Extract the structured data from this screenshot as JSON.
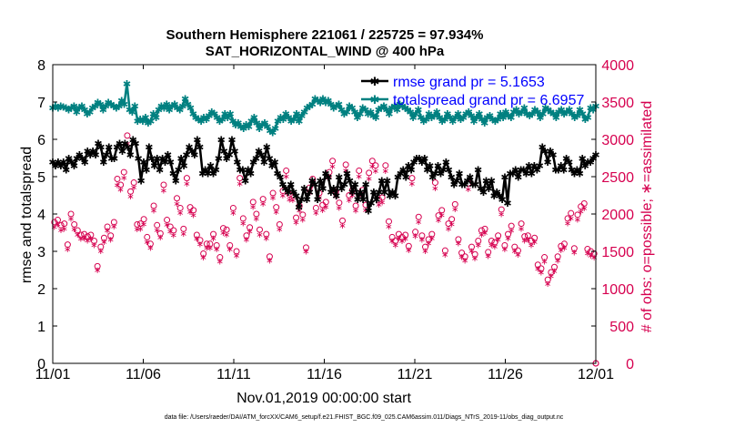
{
  "chart_data": {
    "type": "line",
    "title": [
      "Southern Hemisphere 221061 / 225725 = 97.934%",
      "SAT_HORIZONTAL_WIND @ 400 hPa"
    ],
    "xlabel": "Nov.01,2019 00:00:00 start",
    "ylabel_left": "rmse and totalspread",
    "ylabel_right": "# of obs: o=possible; ∗=assimilated",
    "x_ticks": [
      "11/01",
      "11/06",
      "11/11",
      "11/16",
      "11/21",
      "11/26",
      "12/01"
    ],
    "xlim_days": [
      0,
      30
    ],
    "ylim_left": [
      0,
      8
    ],
    "y_ticks_left": [
      "0",
      "1",
      "2",
      "3",
      "4",
      "5",
      "6",
      "7",
      "8"
    ],
    "ylim_right": [
      0,
      4000
    ],
    "y_ticks_right": [
      "0",
      "500",
      "1000",
      "1500",
      "2000",
      "2500",
      "3000",
      "3500",
      "4000"
    ],
    "legend": [
      "rmse grand pr = 5.1653",
      "totalspread grand pr = 6.6957"
    ],
    "footer": "data file: /Users/raeder/DAI/ATM_forcXX/CAM6_setup/f.e21.FHIST_BGC.f09_025.CAM6assim.011/Diags_NTrS_2019-11/obs_diag_output.nc",
    "colors": {
      "rmse": "#000000",
      "totalspread": "#008080",
      "obs": "#d6004f",
      "frame": "#000000"
    },
    "series": [
      {
        "name": "rmse",
        "values": [
          5.4,
          5.3,
          5.4,
          5.3,
          5.4,
          5.2,
          5.5,
          5.4,
          5.3,
          5.5,
          5.6,
          5.5,
          5.4,
          5.7,
          5.6,
          5.7,
          5.6,
          5.9,
          5.8,
          5.4,
          5.6,
          5.8,
          5.5,
          5.5,
          5.8,
          5.9,
          5.7,
          5.9,
          5.8,
          5.6,
          6.0,
          5.9,
          5.5,
          4.9,
          5.4,
          5.2,
          5.8,
          5.5,
          5.3,
          5.5,
          5.2,
          5.5,
          5.4,
          5.6,
          5.4,
          5.1,
          4.9,
          5.2,
          5.5,
          5.3,
          5.6,
          5.8,
          5.7,
          5.6,
          6.0,
          5.8,
          5.1,
          5.2,
          5.1,
          5.3,
          5.1,
          5.2,
          5.5,
          6.0,
          5.7,
          5.5,
          5.6,
          6.0,
          5.7,
          5.4,
          5.2,
          5.2,
          4.9,
          5.2,
          5.1,
          5.4,
          5.5,
          5.7,
          5.6,
          5.4,
          5.8,
          5.5,
          5.3,
          5.4,
          5.1,
          5.0,
          4.8,
          4.7,
          4.6,
          4.8,
          4.6,
          4.5,
          4.2,
          4.4,
          4.7,
          4.4,
          4.6,
          4.9,
          4.8,
          4.4,
          4.9,
          4.7,
          5.1,
          5.0,
          4.6,
          4.7,
          4.5,
          5.0,
          4.7,
          4.8,
          5.1,
          4.9,
          4.6,
          4.8,
          4.4,
          4.6,
          4.4,
          4.8,
          4.1,
          4.3,
          4.6,
          4.4,
          4.6,
          4.9,
          4.6,
          4.9,
          4.5,
          4.6,
          4.5,
          5.0,
          5.1,
          5.2,
          5.0,
          5.3,
          5.2,
          5.4,
          5.5,
          5.5,
          5.4,
          5.5,
          5.2,
          5.3,
          5.0,
          5.1,
          5.3,
          5.1,
          5.2,
          5.4,
          5.2,
          5.0,
          4.8,
          4.9,
          5.1,
          4.8,
          4.8,
          4.9,
          5.0,
          4.8,
          4.8,
          5.2,
          4.7,
          4.6,
          4.9,
          4.7,
          4.9,
          4.5,
          4.6,
          4.5,
          4.4,
          5.0,
          4.3,
          5.1,
          5.1,
          5.2,
          5.0,
          5.2,
          5.2,
          5.1,
          5.3,
          5.1,
          5.3,
          5.2,
          5.3,
          5.8,
          5.7,
          5.4,
          5.7,
          5.6,
          5.2,
          5.2,
          5.3,
          5.2,
          5.5,
          5.4,
          5.2,
          5.1,
          5.2,
          5.1,
          5.5,
          5.3,
          5.4,
          5.4,
          5.5,
          5.6
        ]
      },
      {
        "name": "totalspread",
        "values": [
          6.85,
          6.9,
          6.85,
          6.9,
          6.88,
          6.85,
          6.8,
          6.85,
          6.9,
          6.75,
          6.85,
          6.9,
          6.8,
          6.7,
          6.75,
          6.85,
          6.9,
          7.0,
          6.95,
          6.8,
          6.9,
          7.0,
          6.95,
          6.9,
          6.85,
          6.9,
          7.05,
          6.95,
          7.5,
          6.8,
          6.75,
          6.9,
          6.5,
          6.55,
          6.5,
          6.6,
          6.45,
          6.5,
          6.7,
          6.6,
          6.8,
          6.9,
          6.85,
          6.95,
          6.8,
          6.9,
          6.95,
          6.85,
          6.8,
          6.9,
          7.1,
          6.95,
          6.85,
          6.7,
          6.6,
          6.55,
          6.5,
          6.6,
          6.55,
          6.65,
          6.75,
          6.7,
          6.6,
          6.5,
          6.55,
          6.7,
          6.6,
          6.7,
          6.5,
          6.4,
          6.45,
          6.35,
          6.3,
          6.4,
          6.35,
          6.5,
          6.6,
          6.45,
          6.3,
          6.4,
          6.45,
          6.35,
          6.25,
          6.2,
          6.3,
          6.5,
          6.6,
          6.55,
          6.7,
          6.6,
          6.5,
          6.55,
          6.7,
          6.5,
          6.65,
          6.75,
          6.85,
          6.9,
          6.95,
          7.1,
          7.05,
          7.0,
          7.1,
          7.0,
          7.05,
          6.95,
          6.85,
          6.9,
          6.95,
          6.8,
          6.7,
          6.75,
          6.9,
          6.85,
          6.75,
          6.6,
          6.7,
          6.85,
          6.8,
          6.7,
          6.75,
          6.65,
          6.6,
          6.8,
          6.85,
          6.9,
          6.8,
          6.7,
          6.85,
          6.9,
          6.8,
          6.95,
          6.9,
          6.85,
          6.8,
          6.75,
          6.6,
          6.7,
          6.8,
          6.6,
          6.5,
          6.55,
          6.7,
          6.6,
          6.65,
          6.75,
          6.6,
          6.5,
          6.55,
          6.7,
          6.6,
          6.5,
          6.6,
          6.7,
          6.55,
          6.6,
          6.7,
          6.75,
          6.65,
          6.5,
          6.6,
          6.7,
          6.55,
          6.45,
          6.6,
          6.65,
          6.55,
          6.5,
          6.55,
          6.7,
          6.6,
          6.75,
          6.65,
          6.6,
          6.75,
          6.8,
          6.7,
          6.75,
          6.85,
          6.7,
          6.65,
          6.7,
          6.8,
          6.75,
          6.6,
          6.7,
          6.85,
          6.8,
          6.75,
          6.7,
          6.6,
          6.75,
          6.8,
          6.7,
          6.75,
          6.8,
          6.7,
          6.6,
          6.65,
          6.8,
          6.7,
          6.55,
          6.6,
          6.85,
          6.8,
          6.9
        ]
      },
      {
        "name": "obs_possible",
        "values": [
          1890,
          1920,
          1850,
          1870,
          1590,
          2000,
          1860,
          1780,
          1720,
          1730,
          1700,
          1720,
          1640,
          1300,
          1560,
          1680,
          1830,
          1710,
          1890,
          2470,
          2390,
          2560,
          3050,
          2300,
          2420,
          1860,
          1870,
          1930,
          1690,
          1600,
          2110,
          1850,
          1740,
          2390,
          1920,
          1830,
          1780,
          2210,
          2080,
          1800,
          2480,
          2090,
          2050,
          1720,
          1650,
          1470,
          1600,
          1600,
          1730,
          1580,
          1420,
          1810,
          1790,
          1580,
          2080,
          1500,
          2480,
          1940,
          1710,
          1820,
          2160,
          2000,
          1790,
          2200,
          1730,
          1430,
          2280,
          2090,
          1860,
          2310,
          2580,
          2260,
          2250,
          1950,
          2110,
          1990,
          1550,
          2350,
          2470,
          2080,
          2280,
          2120,
          2160,
          2560,
          2710,
          2300,
          2150,
          1910,
          2660,
          2250,
          2320,
          2110,
          2580,
          2320,
          2120,
          2550,
          2710,
          2650,
          2190,
          2220,
          2650,
          1900,
          1690,
          1640,
          1730,
          1690,
          1720,
          1570,
          2480,
          1760,
          1960,
          1710,
          1560,
          1660,
          1730,
          2420,
          1980,
          2050,
          1510,
          1870,
          1930,
          2130,
          1660,
          1480,
          1430,
          2410,
          1560,
          1460,
          1640,
          1780,
          1800,
          1490,
          1640,
          1620,
          1710,
          2060,
          1580,
          1730,
          1840,
          1560,
          1510,
          1870,
          1700,
          1710,
          1640,
          1680,
          1320,
          1270,
          1420,
          1120,
          1220,
          1290,
          1430,
          1570,
          1600,
          1940,
          2010,
          1540,
          1990,
          2100,
          2140,
          1530,
          1500,
          1470
        ]
      },
      {
        "name": "obs_assimilated",
        "values": [
          1840,
          1880,
          1800,
          1820,
          1540,
          1950,
          1810,
          1740,
          1680,
          1690,
          1660,
          1680,
          1600,
          1260,
          1520,
          1640,
          1790,
          1670,
          1850,
          2400,
          2340,
          2500,
          2960,
          2250,
          2370,
          1810,
          1820,
          1880,
          1640,
          1560,
          2060,
          1800,
          1700,
          2330,
          1870,
          1780,
          1730,
          2150,
          2030,
          1750,
          2420,
          2040,
          2000,
          1680,
          1610,
          1430,
          1560,
          1560,
          1690,
          1540,
          1380,
          1760,
          1740,
          1540,
          2030,
          1460,
          2420,
          1890,
          1670,
          1780,
          2110,
          1950,
          1740,
          2150,
          1690,
          1390,
          2230,
          2040,
          1810,
          2260,
          2520,
          2210,
          2200,
          1900,
          2060,
          1940,
          1510,
          2300,
          2410,
          2030,
          2230,
          2070,
          2110,
          2500,
          2650,
          2250,
          2100,
          1860,
          2600,
          2200,
          2270,
          2060,
          2520,
          2270,
          2070,
          2490,
          2650,
          2590,
          2140,
          2170,
          2590,
          1850,
          1650,
          1600,
          1690,
          1650,
          1680,
          1530,
          2420,
          1720,
          1910,
          1670,
          1520,
          1620,
          1690,
          2360,
          1930,
          2000,
          1470,
          1820,
          1880,
          2080,
          1620,
          1440,
          1390,
          2350,
          1520,
          1420,
          1600,
          1740,
          1760,
          1450,
          1600,
          1580,
          1670,
          2010,
          1540,
          1690,
          1790,
          1520,
          1470,
          1820,
          1660,
          1670,
          1600,
          1640,
          1280,
          1230,
          1380,
          1080,
          1180,
          1250,
          1390,
          1530,
          1560,
          1890,
          1960,
          1500,
          1940,
          2050,
          2090,
          1490,
          1460,
          1430
        ]
      }
    ]
  }
}
